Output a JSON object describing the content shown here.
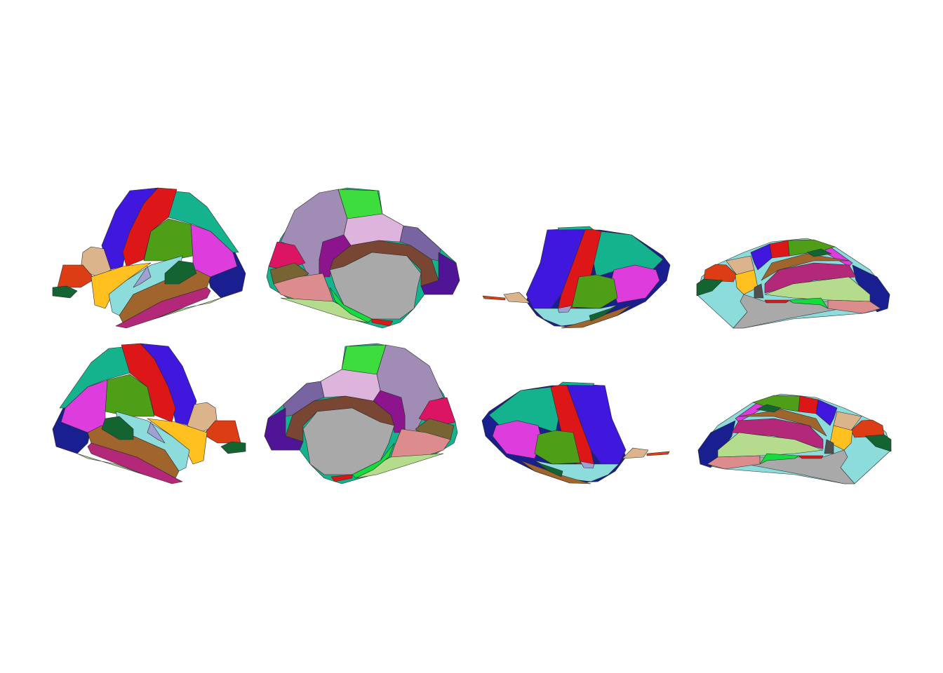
{
  "figure": {
    "background": "#ffffff",
    "outline_color": "#2a2a2a",
    "palette": {
      "dark_blue": "#1a1f8f",
      "teal": "#14b38e",
      "red": "#dd1717",
      "blue_violet": "#3f17dd",
      "green": "#4f9e17",
      "magenta": "#dd3ddd",
      "tan": "#dcb48c",
      "orange_red": "#dd3d14",
      "dark_green": "#146432",
      "yellow": "#ffc020",
      "light_cyan": "#8cdcdc",
      "brown": "#a0642d",
      "plum": "#b4287a",
      "light_green": "#b4dc8c",
      "lavender": "#a0a0d2",
      "gray": "#a9a9a9",
      "dark_brown": "#784632",
      "bright_green": "#3ddd3d",
      "pink": "#dcb4dc",
      "mauve": "#a08cb4",
      "purple": "#8c148c",
      "slate_purple": "#7864a0",
      "dark_purple": "#501496",
      "crimson": "#dc1464",
      "olive": "#786432",
      "salmon": "#dc8c8c",
      "spring_green": "#14dc3c",
      "dark_gray": "#505050"
    }
  }
}
